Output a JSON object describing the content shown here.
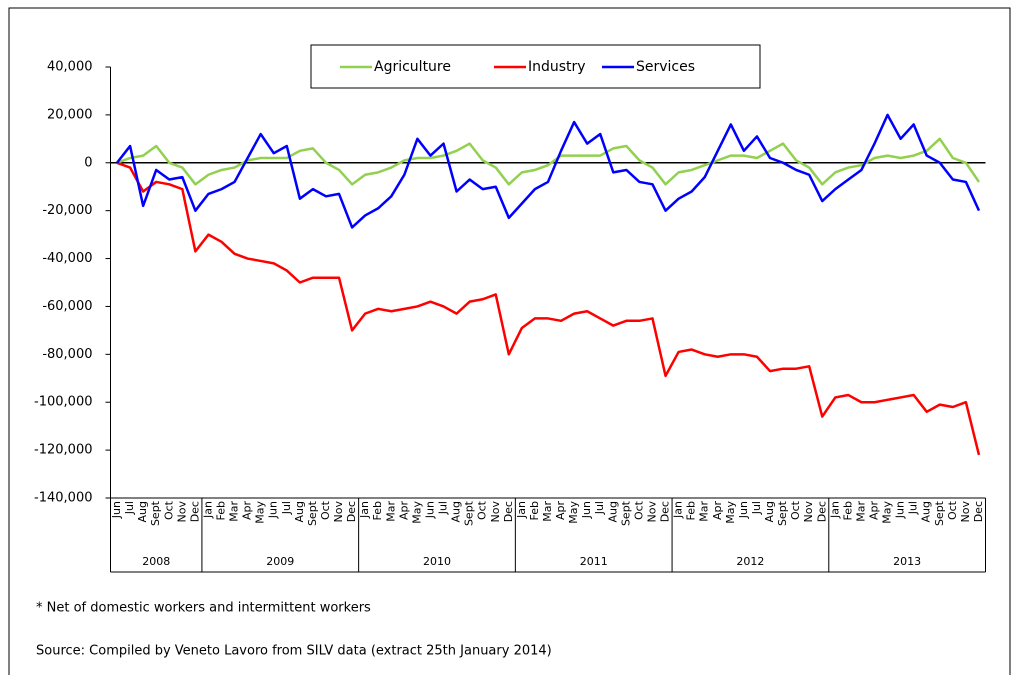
{
  "chart_data": {
    "type": "line",
    "categories": [
      "Jun",
      "Jul",
      "Aug",
      "Sept",
      "Oct",
      "Nov",
      "Dec",
      "Jan",
      "Feb",
      "Mar",
      "Apr",
      "May",
      "Jun",
      "Jul",
      "Aug",
      "Sept",
      "Oct",
      "Nov",
      "Dec",
      "Jan",
      "Feb",
      "Mar",
      "Apr",
      "May",
      "Jun",
      "Jul",
      "Aug",
      "Sept",
      "Oct",
      "Nov",
      "Dec",
      "Jan",
      "Feb",
      "Mar",
      "Apr",
      "May",
      "Jun",
      "Jul",
      "Aug",
      "Sept",
      "Oct",
      "Nov",
      "Dec",
      "Jan",
      "Feb",
      "Mar",
      "Apr",
      "May",
      "Jun",
      "Jul",
      "Aug",
      "Sept",
      "Oct",
      "Nov",
      "Dec",
      "Jan",
      "Feb",
      "Mar",
      "Apr",
      "May",
      "Jun",
      "Jul",
      "Aug",
      "Sept",
      "Oct",
      "Nov",
      "Dec"
    ],
    "year_labels": [
      "2008",
      "2009",
      "2010",
      "2011",
      "2012",
      "2013"
    ],
    "series": [
      {
        "name": "Agriculture",
        "color": "#92d050",
        "values": [
          0,
          2000,
          3000,
          7000,
          0,
          -2000,
          -9000,
          -5000,
          -3000,
          -2000,
          1000,
          2000,
          2000,
          2000,
          5000,
          6000,
          0,
          -3000,
          -9000,
          -5000,
          -4000,
          -2000,
          1000,
          2000,
          2000,
          3000,
          5000,
          8000,
          1000,
          -2000,
          -9000,
          -4000,
          -3000,
          -1000,
          3000,
          3000,
          3000,
          3000,
          6000,
          7000,
          1000,
          -2000,
          -9000,
          -4000,
          -3000,
          -1000,
          1000,
          3000,
          3000,
          2000,
          5000,
          8000,
          1000,
          -2000,
          -9000,
          -4000,
          -2000,
          -1000,
          2000,
          3000,
          2000,
          3000,
          5000,
          10000,
          2000,
          0,
          -8000
        ]
      },
      {
        "name": "Industry",
        "color": "#ff0000",
        "values": [
          0,
          -2000,
          -12000,
          -8000,
          -9000,
          -11000,
          -37000,
          -30000,
          -33000,
          -38000,
          -40000,
          -41000,
          -42000,
          -45000,
          -50000,
          -48000,
          -48000,
          -48000,
          -70000,
          -63000,
          -61000,
          -62000,
          -61000,
          -60000,
          -58000,
          -60000,
          -63000,
          -58000,
          -57000,
          -55000,
          -80000,
          -69000,
          -65000,
          -65000,
          -66000,
          -63000,
          -62000,
          -65000,
          -68000,
          -66000,
          -66000,
          -65000,
          -89000,
          -79000,
          -78000,
          -80000,
          -81000,
          -80000,
          -80000,
          -81000,
          -87000,
          -86000,
          -86000,
          -85000,
          -106000,
          -98000,
          -97000,
          -100000,
          -100000,
          -99000,
          -98000,
          -97000,
          -104000,
          -101000,
          -102000,
          -100000,
          -122000
        ]
      },
      {
        "name": "Services",
        "color": "#0000ff",
        "values": [
          0,
          7000,
          -18000,
          -3000,
          -7000,
          -6000,
          -20000,
          -13000,
          -11000,
          -8000,
          2000,
          12000,
          4000,
          7000,
          -15000,
          -11000,
          -14000,
          -13000,
          -27000,
          -22000,
          -19000,
          -14000,
          -5000,
          10000,
          3000,
          8000,
          -12000,
          -7000,
          -11000,
          -10000,
          -23000,
          -17000,
          -11000,
          -8000,
          5000,
          17000,
          8000,
          12000,
          -4000,
          -3000,
          -8000,
          -9000,
          -20000,
          -15000,
          -12000,
          -6000,
          5000,
          16000,
          5000,
          11000,
          2000,
          0,
          -3000,
          -5000,
          -16000,
          -11000,
          -7000,
          -3000,
          8000,
          20000,
          10000,
          16000,
          3000,
          0,
          -7000,
          -8000,
          -20000
        ]
      }
    ],
    "ylim": [
      -140000,
      40000
    ],
    "yticks": [
      {
        "value": -140000,
        "label": "-140,000"
      },
      {
        "value": -120000,
        "label": "-120,000"
      },
      {
        "value": -100000,
        "label": "-100,000"
      },
      {
        "value": -80000,
        "label": "-80,000"
      },
      {
        "value": -60000,
        "label": "-60,000"
      },
      {
        "value": -40000,
        "label": "-40,000"
      },
      {
        "value": -20000,
        "label": "-20,000"
      },
      0,
      {
        "value": 20000,
        "label": "20,000"
      },
      {
        "value": 40000,
        "label": "40,000"
      }
    ],
    "legend": "top",
    "footnote": "* Net of domestic workers and intermittent workers",
    "source": "Source: Compiled by Veneto Lavoro from SILV data (extract 25th January 2014)"
  }
}
